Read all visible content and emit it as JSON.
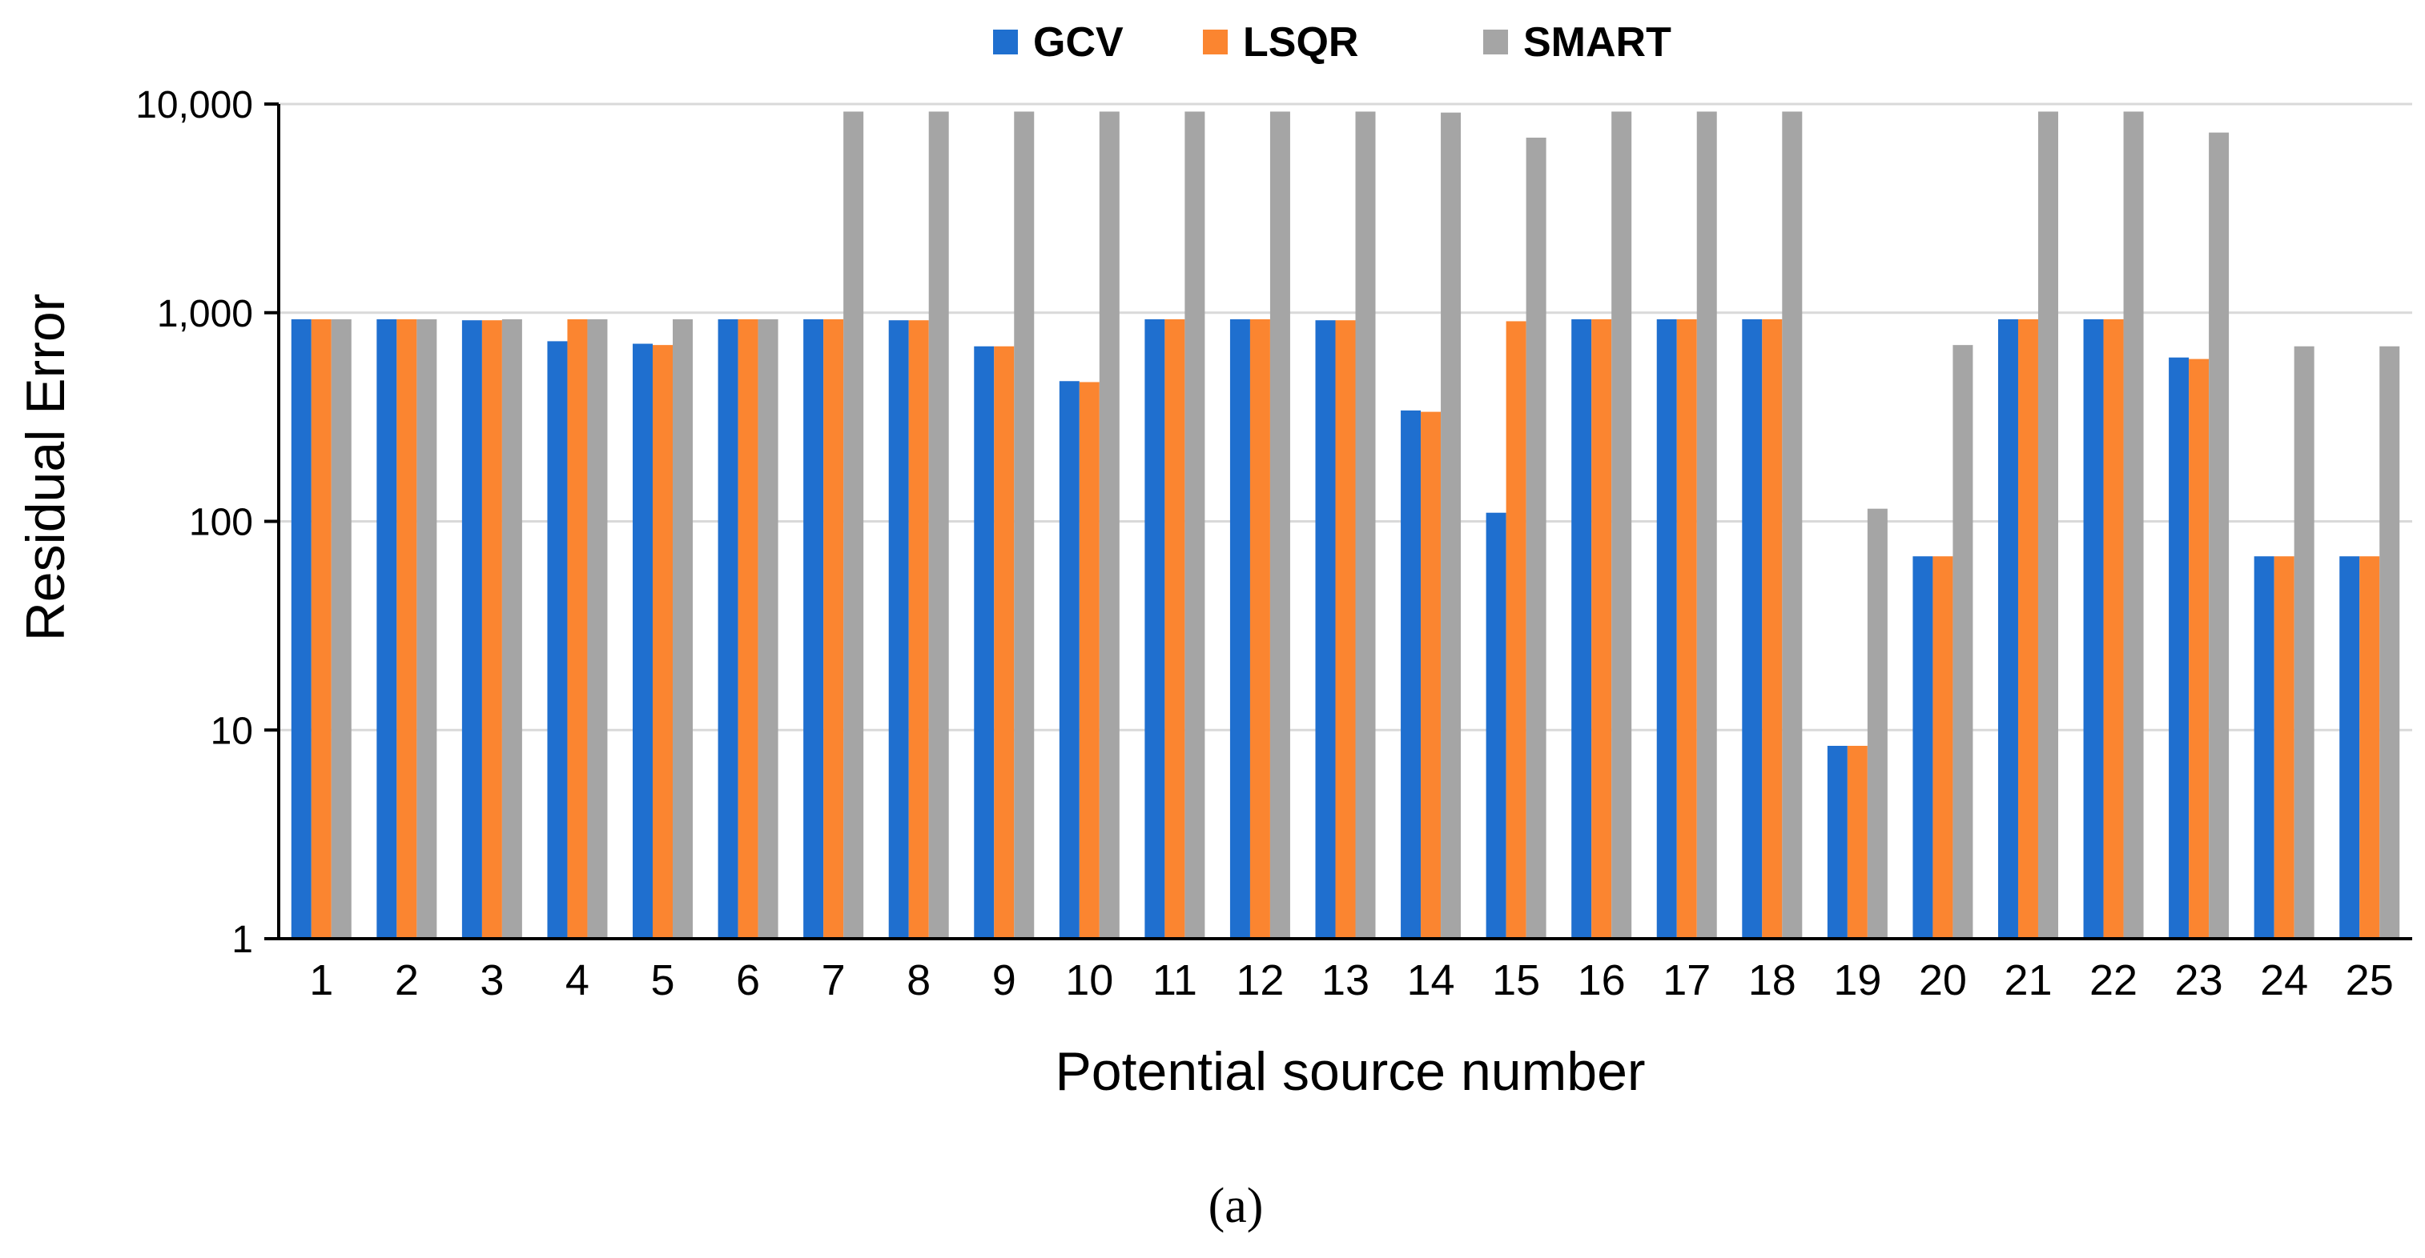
{
  "chart_data": {
    "type": "bar",
    "scale": "log10",
    "categories": [
      "1",
      "2",
      "3",
      "4",
      "5",
      "6",
      "7",
      "8",
      "9",
      "10",
      "11",
      "12",
      "13",
      "14",
      "15",
      "16",
      "17",
      "18",
      "19",
      "20",
      "21",
      "22",
      "23",
      "24",
      "25"
    ],
    "series": [
      {
        "name": "GCV",
        "color": "#1f6fcf",
        "values": [
          930,
          930,
          920,
          730,
          710,
          930,
          930,
          920,
          690,
          470,
          930,
          930,
          920,
          340,
          110,
          930,
          930,
          930,
          8.4,
          68,
          930,
          930,
          610,
          68,
          68
        ]
      },
      {
        "name": "LSQR",
        "color": "#fb8530",
        "values": [
          930,
          930,
          920,
          930,
          700,
          930,
          930,
          920,
          690,
          465,
          930,
          930,
          920,
          335,
          910,
          930,
          930,
          930,
          8.4,
          68,
          930,
          930,
          600,
          68,
          68
        ]
      },
      {
        "name": "SMART",
        "color": "#a5a5a5",
        "values": [
          930,
          930,
          930,
          930,
          930,
          930,
          9200,
          9200,
          9200,
          9200,
          9200,
          9200,
          9200,
          9100,
          6900,
          9200,
          9200,
          9200,
          115,
          700,
          9200,
          9200,
          7300,
          690,
          690
        ]
      }
    ],
    "yticks": [
      1,
      10,
      100,
      1000,
      10000
    ],
    "ytick_labels": [
      "1",
      "10",
      "100",
      "1,000",
      "10,000"
    ],
    "ylim": [
      1,
      10000
    ],
    "xlabel": "Potential source number",
    "ylabel": "Residual  Error",
    "legend_position": "top-center",
    "grid": true,
    "caption": "(a)"
  }
}
